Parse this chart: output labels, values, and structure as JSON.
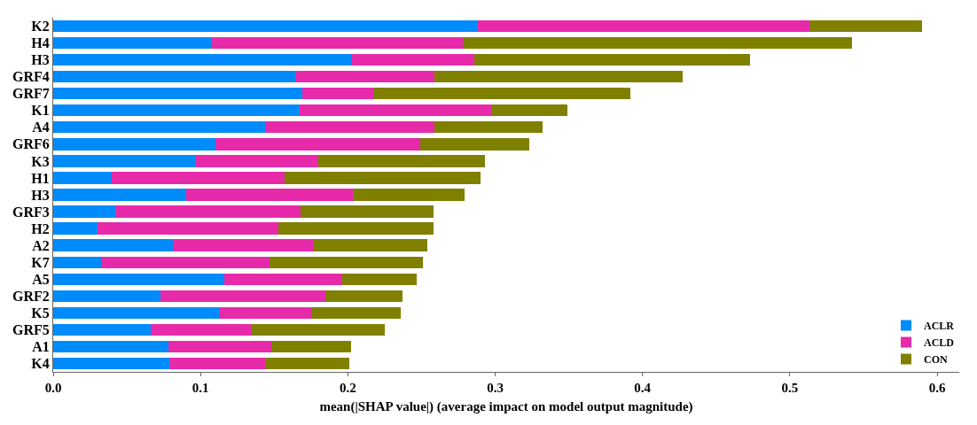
{
  "chart_data": {
    "type": "bar",
    "orientation": "horizontal",
    "stacked": true,
    "xlabel": "mean(|SHAP value|) (average impact on model output magnitude)",
    "categories": [
      "K2",
      "H4",
      "H3",
      "GRF4",
      "GRF7",
      "K1",
      "A4",
      "GRF6",
      "K3",
      "H1",
      "H3",
      "GRF3",
      "H2",
      "A2",
      "K7",
      "A5",
      "GRF2",
      "K5",
      "GRF5",
      "A1",
      "K4"
    ],
    "series": [
      {
        "name": "ACLR",
        "color": "#008bfb",
        "values": [
          0.288,
          0.107,
          0.203,
          0.164,
          0.169,
          0.167,
          0.144,
          0.11,
          0.096,
          0.04,
          0.09,
          0.042,
          0.03,
          0.081,
          0.033,
          0.116,
          0.073,
          0.113,
          0.066,
          0.078,
          0.079
        ]
      },
      {
        "name": "ACLD",
        "color": "#e72aaa",
        "values": [
          0.225,
          0.171,
          0.083,
          0.095,
          0.048,
          0.13,
          0.115,
          0.139,
          0.084,
          0.117,
          0.114,
          0.126,
          0.123,
          0.096,
          0.114,
          0.08,
          0.112,
          0.062,
          0.069,
          0.07,
          0.065
        ]
      },
      {
        "name": "CON",
        "color": "#808000",
        "values": [
          0.077,
          0.264,
          0.187,
          0.168,
          0.175,
          0.052,
          0.073,
          0.074,
          0.113,
          0.133,
          0.075,
          0.09,
          0.105,
          0.077,
          0.104,
          0.051,
          0.052,
          0.061,
          0.09,
          0.054,
          0.057
        ]
      }
    ],
    "xlim": [
      0,
      0.615
    ],
    "xticks": [
      {
        "value": 0,
        "label": "0.0"
      },
      0.1,
      0.2,
      0.3,
      0.4,
      0.5,
      0.6
    ],
    "grid": false,
    "legend": "bottom right"
  }
}
